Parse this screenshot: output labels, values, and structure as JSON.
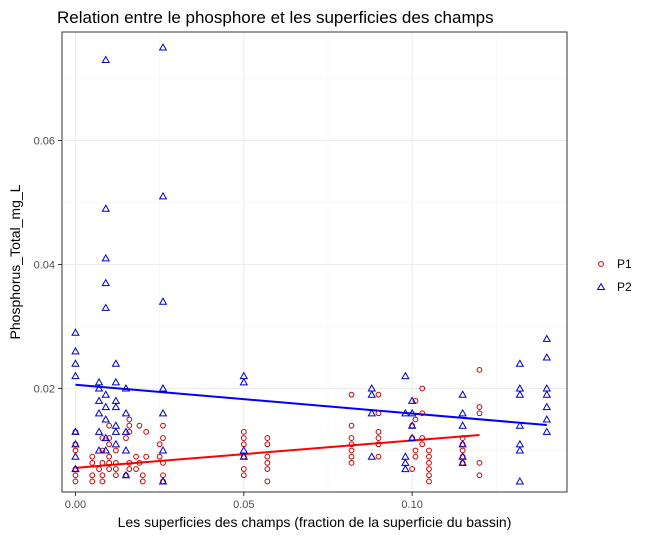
{
  "chart_data": {
    "type": "scatter",
    "title": "Relation entre le phosphore et les superficies des champs",
    "xlabel": "Les superficies des champs (fraction de la superficie du bassin)",
    "ylabel": "Phosphorus_Total_mg_L",
    "xlim": [
      -0.004,
      0.146
    ],
    "ylim": [
      0.0033,
      0.0775
    ],
    "x_ticks": [
      0.0,
      0.05,
      0.1
    ],
    "x_tick_labels": [
      "0.00",
      "0.05",
      "0.10"
    ],
    "y_ticks": [
      0.02,
      0.04,
      0.06
    ],
    "y_tick_labels": [
      "0.02",
      "0.04",
      "0.06"
    ],
    "legend_position": "right",
    "series": [
      {
        "name": "P1",
        "label": "P1",
        "marker": "circle",
        "color": "#cc0000",
        "x": [
          0.0,
          0.0,
          0.0,
          0.0,
          0.0,
          0.0,
          0.005,
          0.005,
          0.005,
          0.005,
          0.007,
          0.008,
          0.008,
          0.008,
          0.008,
          0.008,
          0.01,
          0.01,
          0.01,
          0.01,
          0.01,
          0.01,
          0.012,
          0.012,
          0.012,
          0.012,
          0.015,
          0.015,
          0.016,
          0.016,
          0.016,
          0.016,
          0.016,
          0.018,
          0.018,
          0.019,
          0.019,
          0.02,
          0.02,
          0.021,
          0.021,
          0.025,
          0.025,
          0.026,
          0.026,
          0.026,
          0.026,
          0.026,
          0.05,
          0.05,
          0.05,
          0.05,
          0.05,
          0.05,
          0.057,
          0.057,
          0.057,
          0.057,
          0.057,
          0.057,
          0.082,
          0.082,
          0.082,
          0.082,
          0.082,
          0.082,
          0.082,
          0.09,
          0.09,
          0.09,
          0.09,
          0.09,
          0.09,
          0.1,
          0.1,
          0.1,
          0.101,
          0.101,
          0.101,
          0.101,
          0.103,
          0.103,
          0.103,
          0.103,
          0.105,
          0.105,
          0.105,
          0.105,
          0.105,
          0.105,
          0.115,
          0.115,
          0.115,
          0.115,
          0.115,
          0.12,
          0.12,
          0.12,
          0.12,
          0.12
        ],
        "y": [
          0.005,
          0.006,
          0.007,
          0.01,
          0.011,
          0.013,
          0.005,
          0.006,
          0.008,
          0.009,
          0.007,
          0.005,
          0.006,
          0.008,
          0.01,
          0.012,
          0.007,
          0.008,
          0.009,
          0.011,
          0.012,
          0.014,
          0.006,
          0.007,
          0.008,
          0.01,
          0.006,
          0.012,
          0.007,
          0.008,
          0.013,
          0.014,
          0.015,
          0.007,
          0.009,
          0.008,
          0.014,
          0.005,
          0.006,
          0.009,
          0.013,
          0.009,
          0.011,
          0.005,
          0.006,
          0.008,
          0.012,
          0.014,
          0.006,
          0.007,
          0.009,
          0.011,
          0.012,
          0.013,
          0.005,
          0.007,
          0.008,
          0.009,
          0.011,
          0.012,
          0.008,
          0.009,
          0.01,
          0.011,
          0.012,
          0.014,
          0.019,
          0.009,
          0.011,
          0.012,
          0.013,
          0.016,
          0.019,
          0.007,
          0.012,
          0.014,
          0.009,
          0.01,
          0.015,
          0.018,
          0.011,
          0.012,
          0.016,
          0.02,
          0.005,
          0.006,
          0.007,
          0.008,
          0.009,
          0.01,
          0.008,
          0.009,
          0.01,
          0.011,
          0.012,
          0.006,
          0.008,
          0.016,
          0.017,
          0.023
        ]
      },
      {
        "name": "P2",
        "label": "P2",
        "marker": "triangle",
        "color": "#0000cc",
        "x": [
          0.0,
          0.0,
          0.0,
          0.0,
          0.0,
          0.0,
          0.0,
          0.0,
          0.007,
          0.007,
          0.007,
          0.007,
          0.007,
          0.007,
          0.009,
          0.009,
          0.009,
          0.009,
          0.009,
          0.009,
          0.009,
          0.009,
          0.009,
          0.009,
          0.012,
          0.012,
          0.012,
          0.012,
          0.012,
          0.012,
          0.012,
          0.015,
          0.015,
          0.015,
          0.015,
          0.015,
          0.026,
          0.026,
          0.026,
          0.026,
          0.026,
          0.026,
          0.026,
          0.05,
          0.05,
          0.05,
          0.05,
          0.088,
          0.088,
          0.088,
          0.088,
          0.098,
          0.098,
          0.098,
          0.098,
          0.098,
          0.1,
          0.1,
          0.1,
          0.1,
          0.115,
          0.115,
          0.115,
          0.115,
          0.115,
          0.115,
          0.132,
          0.132,
          0.132,
          0.132,
          0.132,
          0.132,
          0.132,
          0.14,
          0.14,
          0.14,
          0.14,
          0.14,
          0.14,
          0.14
        ],
        "y": [
          0.029,
          0.026,
          0.024,
          0.022,
          0.013,
          0.011,
          0.009,
          0.007,
          0.021,
          0.02,
          0.018,
          0.016,
          0.013,
          0.01,
          0.073,
          0.049,
          0.041,
          0.037,
          0.033,
          0.019,
          0.017,
          0.015,
          0.012,
          0.01,
          0.024,
          0.021,
          0.018,
          0.017,
          0.014,
          0.013,
          0.011,
          0.02,
          0.016,
          0.013,
          0.01,
          0.006,
          0.075,
          0.051,
          0.034,
          0.02,
          0.016,
          0.01,
          0.005,
          0.022,
          0.021,
          0.01,
          0.009,
          0.02,
          0.019,
          0.016,
          0.009,
          0.022,
          0.016,
          0.009,
          0.008,
          0.007,
          0.018,
          0.016,
          0.014,
          0.012,
          0.019,
          0.016,
          0.014,
          0.011,
          0.009,
          0.008,
          0.024,
          0.02,
          0.019,
          0.014,
          0.011,
          0.01,
          0.005,
          0.028,
          0.025,
          0.02,
          0.019,
          0.017,
          0.015,
          0.013
        ]
      }
    ],
    "trend_lines": [
      {
        "series": "P1",
        "color": "#ff0000",
        "x": [
          0.0,
          0.12
        ],
        "y": [
          0.0072,
          0.0125
        ]
      },
      {
        "series": "P2",
        "color": "#0000ff",
        "x": [
          0.0,
          0.14
        ],
        "y": [
          0.0206,
          0.0141
        ]
      }
    ]
  }
}
